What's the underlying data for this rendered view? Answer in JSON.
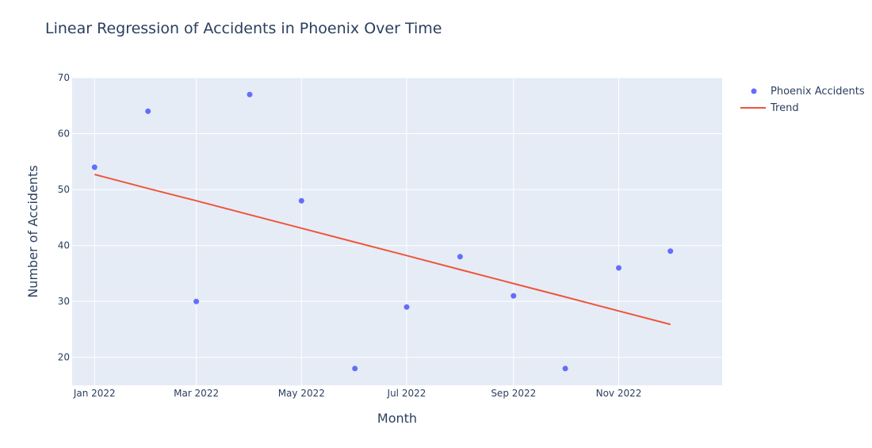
{
  "chart_data": {
    "type": "scatter",
    "title": "Linear Regression of Accidents in Phoenix Over Time",
    "xlabel": "Month",
    "ylabel": "Number of Accidents",
    "x": [
      "2022-01-01",
      "2022-02-01",
      "2022-03-01",
      "2022-04-01",
      "2022-05-01",
      "2022-06-01",
      "2022-07-01",
      "2022-08-01",
      "2022-09-01",
      "2022-10-01",
      "2022-11-01",
      "2022-12-01"
    ],
    "x_tick_labels": [
      {
        "date": "2022-01-01",
        "label": "Jan 2022"
      },
      {
        "date": "2022-03-01",
        "label": "Mar 2022"
      },
      {
        "date": "2022-05-01",
        "label": "May 2022"
      },
      {
        "date": "2022-07-01",
        "label": "Jul 2022"
      },
      {
        "date": "2022-09-01",
        "label": "Sep 2022"
      },
      {
        "date": "2022-11-01",
        "label": "Nov 2022"
      }
    ],
    "xlim": [
      "2021-12-19",
      "2022-12-31"
    ],
    "ylim": [
      15,
      70
    ],
    "y_ticks": [
      20,
      30,
      40,
      50,
      60,
      70
    ],
    "grid": true,
    "legend_position": "top-right",
    "series": [
      {
        "name": "Phoenix Accidents",
        "mode": "markers",
        "color": "#636efa",
        "values": [
          54,
          64,
          30,
          67,
          48,
          18,
          29,
          38,
          31,
          18,
          36,
          39
        ]
      },
      {
        "name": "Trend",
        "mode": "line",
        "color": "#ef553b",
        "values": [
          52.7,
          50.2,
          48.0,
          45.5,
          43.1,
          40.6,
          38.2,
          35.7,
          33.2,
          30.8,
          28.3,
          25.9
        ]
      }
    ]
  },
  "colors": {
    "plot_background": "#e5ecf6",
    "grid": "#ffffff",
    "text": "#2a3f5f"
  }
}
